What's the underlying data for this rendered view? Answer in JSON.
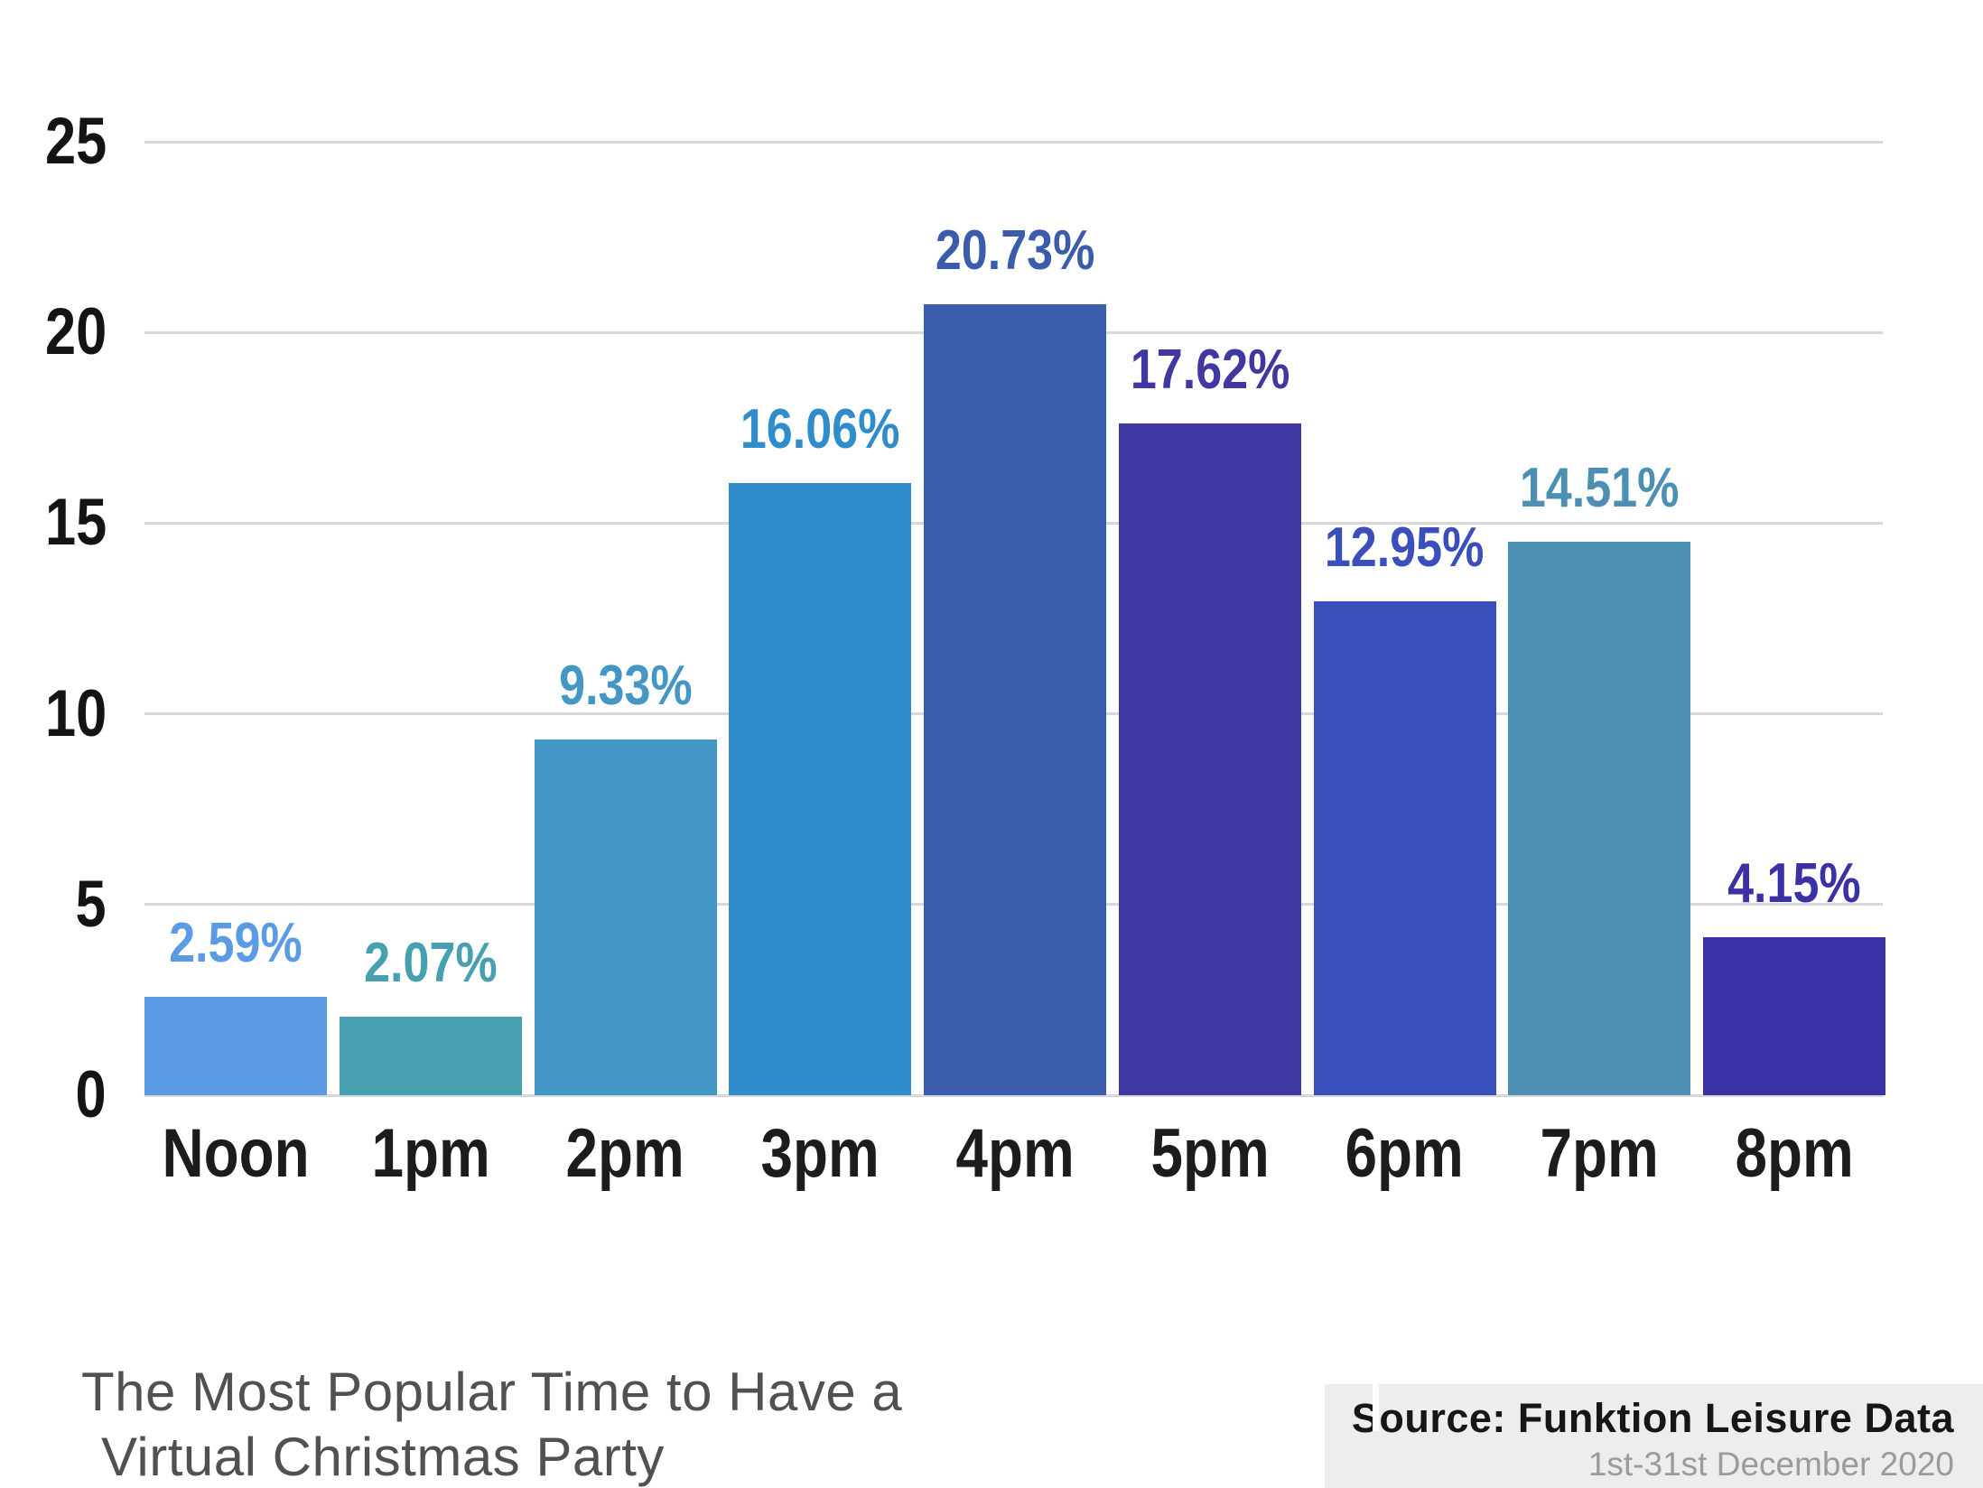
{
  "chart_data": {
    "type": "bar",
    "title": "The Most Popular Time to Have a Virtual Christmas Party",
    "categories": [
      "Noon",
      "1pm",
      "2pm",
      "3pm",
      "4pm",
      "5pm",
      "6pm",
      "7pm",
      "8pm"
    ],
    "values": [
      2.59,
      2.07,
      9.33,
      16.06,
      20.73,
      17.62,
      12.95,
      14.51,
      4.15
    ],
    "value_labels": [
      "2.59%",
      "2.07%",
      "9.33%",
      "16.06%",
      "20.73%",
      "17.62%",
      "12.95%",
      "14.51%",
      "4.15%"
    ],
    "bar_colors": [
      "#5b9be4",
      "#47a0b2",
      "#4496c4",
      "#318ccb",
      "#3a5cab",
      "#3f38a0",
      "#3a4fbc",
      "#4d8fb3",
      "#3a31a4"
    ],
    "xlabel": "",
    "ylabel": "",
    "ylim": [
      0,
      25
    ],
    "yticks": [
      0,
      5,
      10,
      15,
      20,
      25
    ],
    "grid": true,
    "legend": false,
    "gridline_color": "#d8d8d8",
    "background_color": "#ffffff"
  },
  "title": {
    "line1": "The Most Popular Time to Have a",
    "line2": "Virtual Christmas Party"
  },
  "source": {
    "label": "Source: Funktion Leisure Data",
    "period": "1st-31st December 2020"
  }
}
